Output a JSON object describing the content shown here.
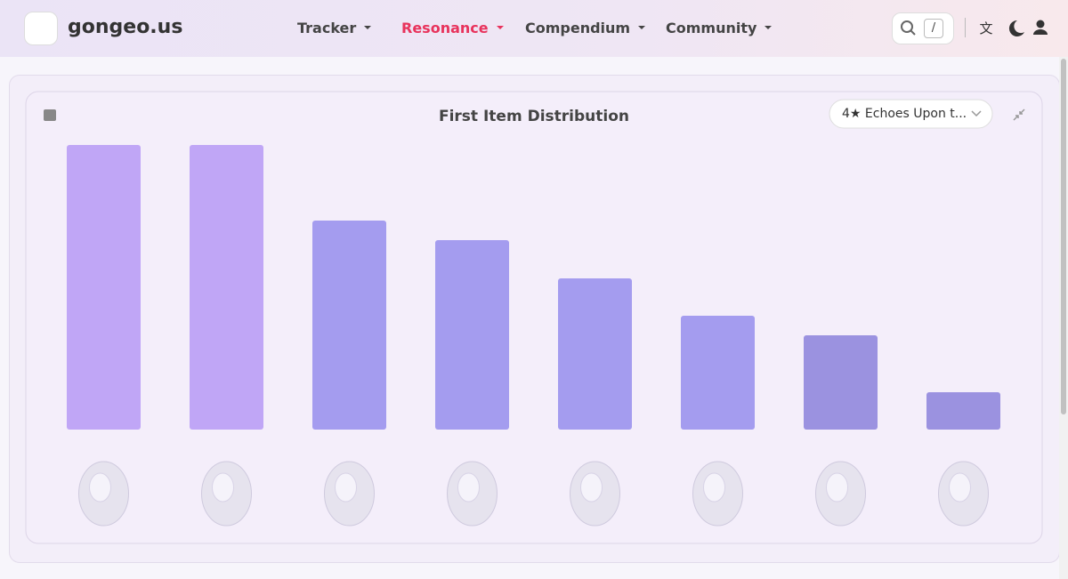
{
  "header": {
    "brand": "gongeo.us",
    "nav": [
      "Tracker",
      "Resonance",
      "Compendium",
      "Community"
    ],
    "active_nav": 1,
    "search_shortcut": "/"
  },
  "chart_data": {
    "type": "bar",
    "title": "First Item Distribution",
    "selector": "4★ Echoes Upon t...",
    "categories": [
      null,
      null,
      null,
      null,
      null,
      null,
      null,
      null
    ],
    "values": [
      320,
      320,
      235,
      213,
      170,
      128,
      106,
      42
    ],
    "colors": [
      "#c0a6f6",
      "#c0a6f6",
      "#a49cef",
      "#a49cef",
      "#a49cef",
      "#a49cef",
      "#9b92e0",
      "#9b92e0"
    ],
    "ylim": [
      0,
      320
    ],
    "grid": false
  }
}
